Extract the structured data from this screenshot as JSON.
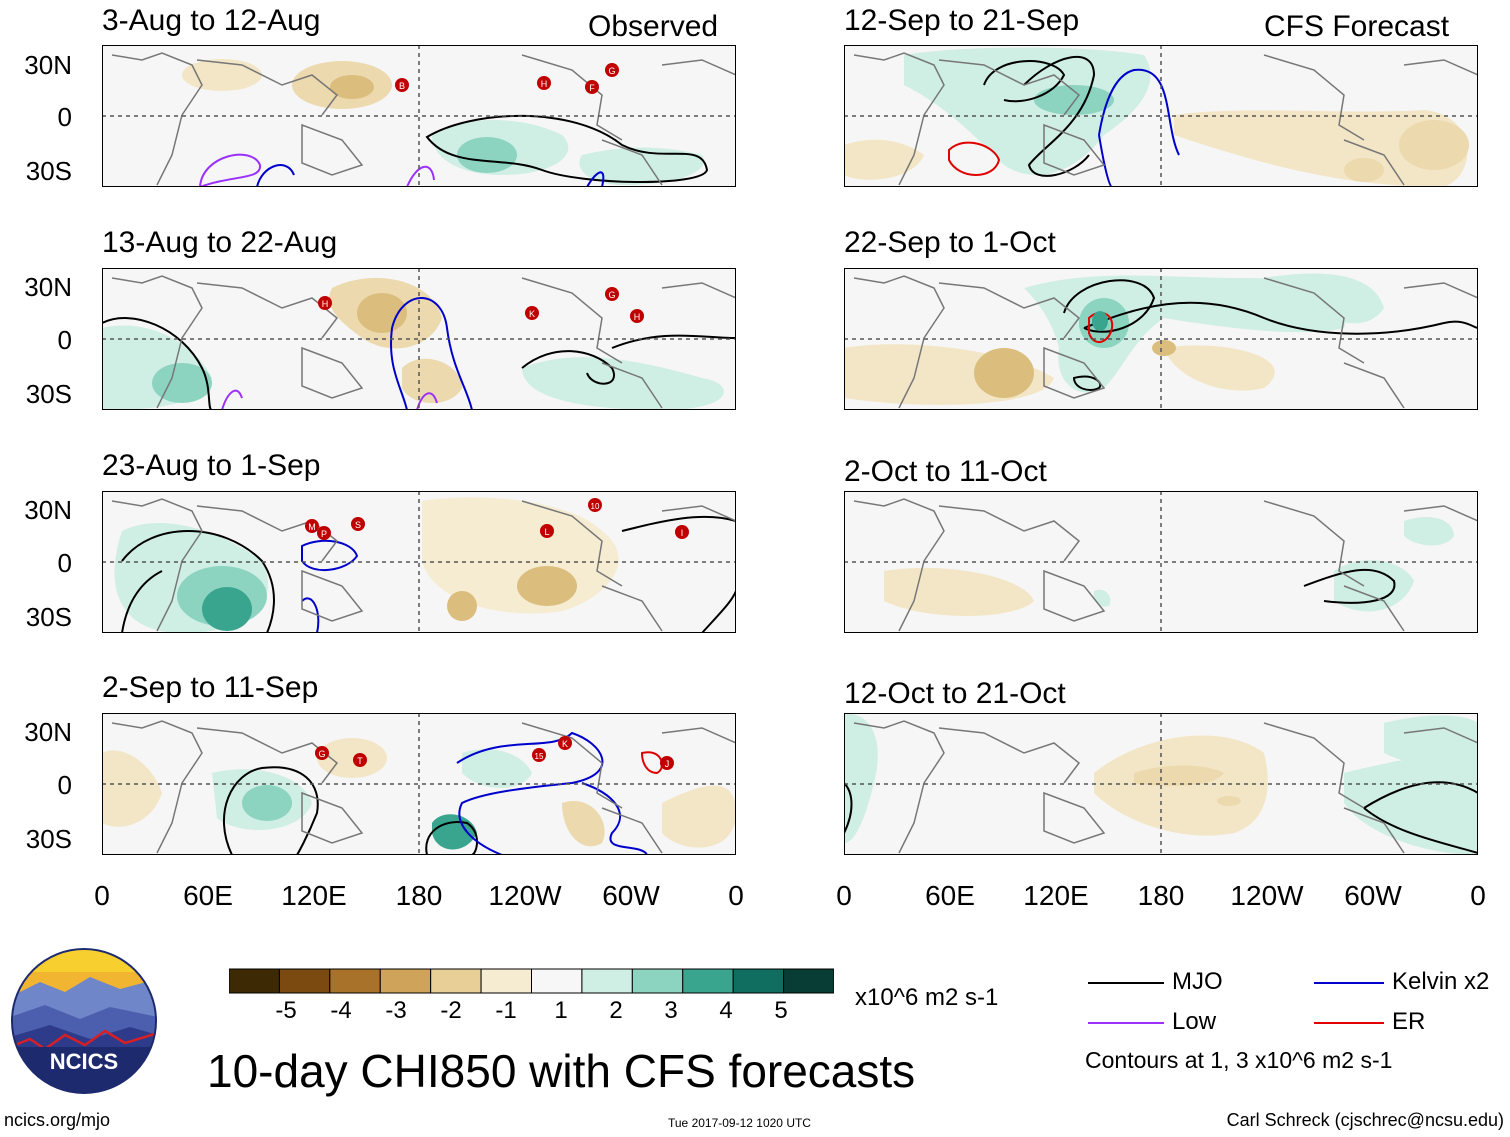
{
  "figure": {
    "title": "10-day CHI850 with CFS forecasts",
    "units": "x10^6 m2 s-1",
    "website": "ncics.org/mjo",
    "timestamp": "Tue 2017-09-12 1020 UTC",
    "author": "Carl Schreck (cjschrec@ncsu.edu)",
    "logo_text": "NCICS",
    "contour_note": "Contours at 1, 3 x10^6 m2 s-1"
  },
  "column_tags": {
    "left": "Observed",
    "right": "CFS Forecast"
  },
  "panels": [
    {
      "title": "3-Aug to 12-Aug",
      "side": "observed"
    },
    {
      "title": "13-Aug to 22-Aug",
      "side": "observed"
    },
    {
      "title": "23-Aug to 1-Sep",
      "side": "observed"
    },
    {
      "title": "2-Sep to 11-Sep",
      "side": "observed"
    },
    {
      "title": "12-Sep to 21-Sep",
      "side": "forecast"
    },
    {
      "title": "22-Sep to 1-Oct",
      "side": "forecast"
    },
    {
      "title": "2-Oct to 11-Oct",
      "side": "forecast"
    },
    {
      "title": "12-Oct to 21-Oct",
      "side": "forecast"
    }
  ],
  "lat_labels": [
    "30N",
    "0",
    "30S"
  ],
  "lon_labels": [
    "0",
    "60E",
    "120E",
    "180",
    "120W",
    "60W",
    "0"
  ],
  "colorbar": {
    "labels": [
      "-5",
      "-4",
      "-3",
      "-2",
      "-1",
      "1",
      "2",
      "3",
      "4",
      "5"
    ],
    "colors": [
      "#3d2a05",
      "#7a4a10",
      "#a8722a",
      "#cfa35a",
      "#e8cf98",
      "#f6ecd2",
      "#f7f7f7",
      "#cfeee4",
      "#8cd3c0",
      "#3aa58f",
      "#0f6e5f",
      "#073d34"
    ]
  },
  "legend": [
    {
      "label": "MJO",
      "color": "#000000"
    },
    {
      "label": "Kelvin x2",
      "color": "#0000cc"
    },
    {
      "label": "Low",
      "color": "#9b30ff"
    },
    {
      "label": "ER",
      "color": "#e00000"
    }
  ],
  "storms": [
    {
      "panel": 0,
      "letters": [
        "B",
        "H",
        "F",
        "G"
      ]
    },
    {
      "panel": 1,
      "letters": [
        "H",
        "K",
        "G",
        "H"
      ]
    },
    {
      "panel": 2,
      "letters": [
        "M",
        "P",
        "S",
        "L",
        "10",
        "I"
      ]
    },
    {
      "panel": 3,
      "letters": [
        "G",
        "T",
        "15",
        "K",
        "J"
      ]
    }
  ]
}
